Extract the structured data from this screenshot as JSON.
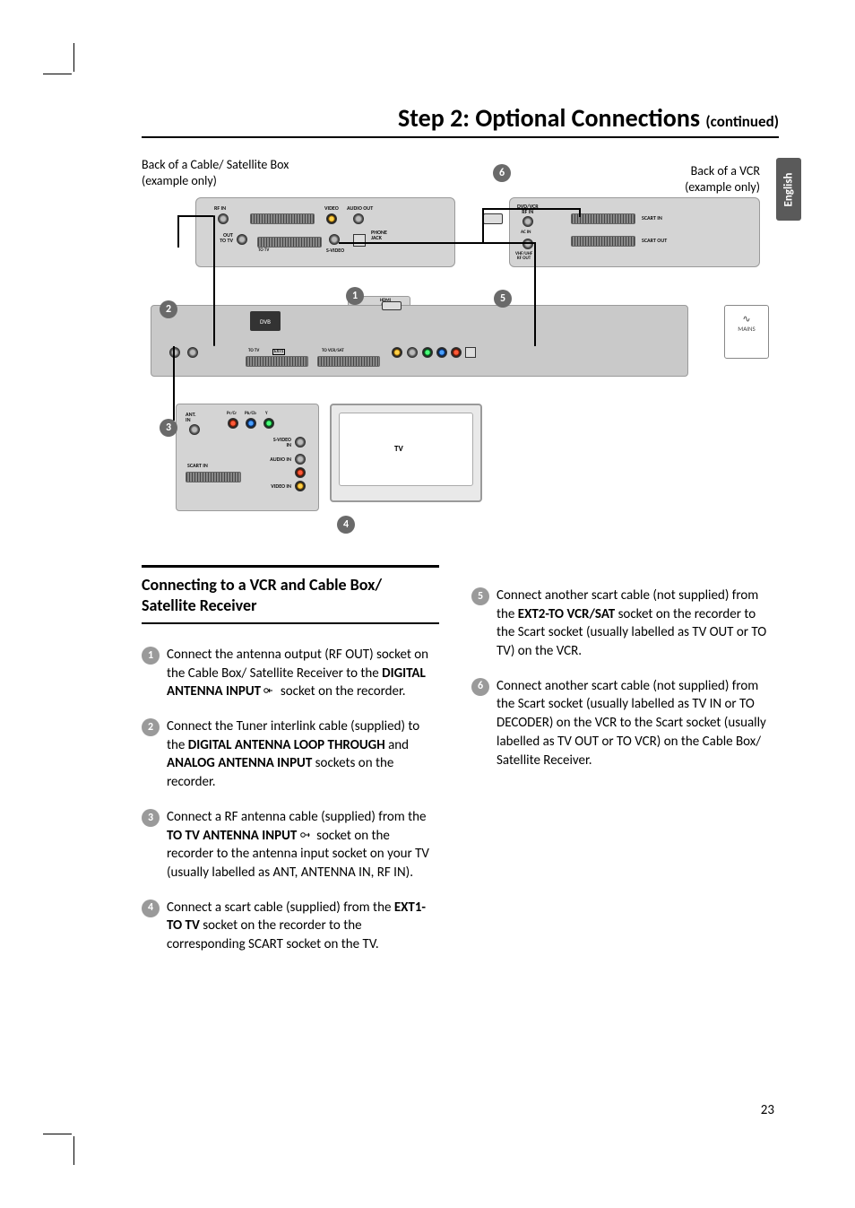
{
  "title_main": "Step 2: Optional Connections ",
  "title_sub": "(continued)",
  "language_tab": "English",
  "diagram": {
    "label_cable_box": "Back of a Cable/ Satellite Box (example only)",
    "label_vcr": "Back of a VCR (example only)",
    "tv_label": "TV",
    "mains_label": "MAINS",
    "cable_rf_in": "RF IN",
    "cable_video": "VIDEO",
    "cable_audio_out": "AUDIO OUT",
    "cable_out_to_tv": "OUT\nTO TV",
    "cable_to_tv": "TO TV",
    "cable_svideo": "S-VIDEO",
    "cable_phone": "PHONE\nJACK",
    "vcr_rf_in": "DVD/VCR\nRF IN",
    "vcr_scart_in": "SCART IN",
    "vcr_scart_out": "SCART OUT",
    "vcr_ac_in": "AC IN",
    "vcr_rf_out": "VHF/UHF\nRF OUT",
    "rec_to_tv": "TO TV",
    "rec_ext1": "EXT1",
    "rec_ext2": "TO VCR/SAT",
    "rec_hdmi": "HDMI\nOUT",
    "tv_ant": "ANT.\nIN",
    "tv_pr": "Pr/Cr",
    "tv_pb": "Pb/Cb",
    "tv_y": "Y",
    "tv_scart": "SCART IN",
    "tv_svideo_in": "S-VIDEO\nIN",
    "tv_audio_in": "AUDIO IN",
    "tv_video_in": "VIDEO IN",
    "badge_color": "#6a6a6a",
    "device_fill": "#d4d4d4"
  },
  "section_title": "Connecting to a VCR and Cable Box/ Satellite Receiver",
  "steps_left": [
    {
      "n": "1",
      "pre": "Connect the antenna output (RF OUT) socket on the Cable Box/ Satellite Receiver to the ",
      "b1": "DIGITAL ANTENNA INPUT ",
      "icon": "in",
      "post": " socket on the recorder."
    },
    {
      "n": "2",
      "pre": "Connect the Tuner interlink cable (supplied) to the ",
      "b1": "DIGITAL ANTENNA LOOP THROUGH",
      "mid": " and ",
      "b2": "ANALOG ANTENNA INPUT",
      "post": " sockets on the recorder."
    },
    {
      "n": "3",
      "pre": "Connect a RF antenna cable (supplied) from the ",
      "b1": "TO TV ANTENNA INPUT ",
      "icon": "out",
      "post": " socket on the recorder to the antenna input socket on your TV (usually labelled as ANT, ANTENNA IN, RF IN)."
    },
    {
      "n": "4",
      "pre": "Connect a scart cable (supplied) from the ",
      "b1": "EXT1-TO TV",
      "post": " socket on the recorder to the corresponding SCART socket on the TV."
    }
  ],
  "steps_right": [
    {
      "n": "5",
      "pre": "Connect another scart cable (not supplied) from the ",
      "b1": "EXT2-TO VCR/SAT",
      "post": " socket on the recorder to the Scart socket (usually labelled as TV OUT or TO TV) on the VCR."
    },
    {
      "n": "6",
      "pre": "Connect another scart cable (not supplied) from the Scart socket (usually labelled as TV IN or TO DECODER) on the VCR to the Scart socket (usually labelled as TV OUT or TO VCR) on the Cable Box/ Satellite Receiver.",
      "b1": "",
      "post": ""
    }
  ],
  "page_number": "23"
}
